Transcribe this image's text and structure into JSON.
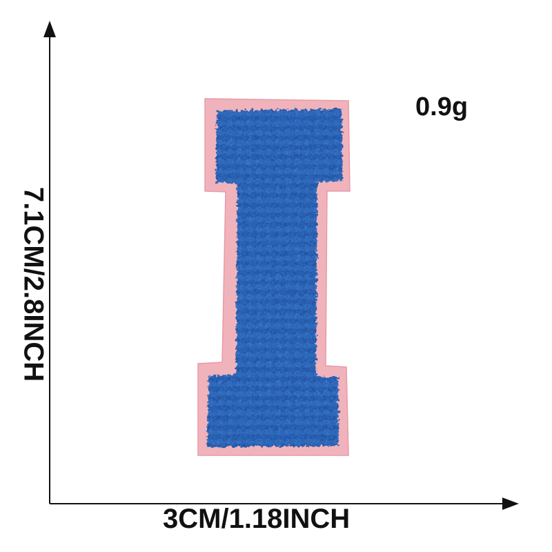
{
  "product": {
    "weight_label": "0.9g",
    "width_label": "3CM/1.18INCH",
    "height_label": "7.1CM/2.8INCH"
  },
  "colors": {
    "felt_backing": "#f1b3bb",
    "chenille": "#2b64b8",
    "chenille_dark": "#1d4a94",
    "chenille_light": "#4a86d6",
    "axis": "#111111"
  },
  "icons": {
    "x_axis_arrow": "arrow-right-icon",
    "y_axis_arrow": "arrow-up-icon"
  }
}
